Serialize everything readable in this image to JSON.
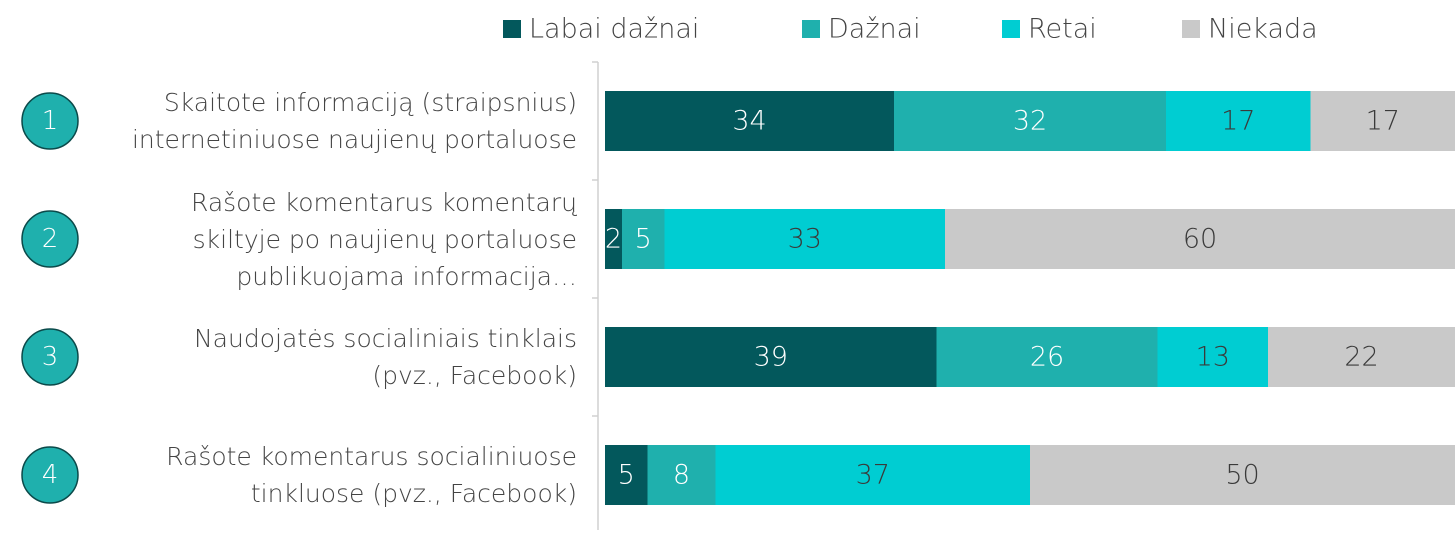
{
  "chart_data": {
    "type": "stacked-bar-horizontal",
    "row_numbers": [
      "1",
      "2",
      "3",
      "4"
    ],
    "categories": [
      "Skaitote informaciją (straipsnius) internetiniuose naujienų portaluose",
      "Rašote komentarus komentarų skiltyje po naujienų portaluose publikuojama informacija…",
      "Naudojatės socialiniais tinklais (pvz., Facebook)",
      "Rašote komentarus socialiniuose tinkluose (pvz., Facebook)"
    ],
    "series": [
      {
        "name": "Labai dažnai",
        "color": "#03585c",
        "label_color": "#ffffff",
        "values": [
          34,
          2,
          39,
          5
        ]
      },
      {
        "name": "Dažnai",
        "color": "#1fb0ad",
        "label_color": "#ffffff",
        "values": [
          32,
          5,
          26,
          8
        ]
      },
      {
        "name": "Retai",
        "color": "#00cdd2",
        "label_color": "#3a3a3a",
        "values": [
          17,
          33,
          13,
          37
        ]
      },
      {
        "name": "Niekada",
        "color": "#c9c9c9",
        "label_color": "#3a3a3a",
        "values": [
          17,
          60,
          22,
          50
        ]
      }
    ],
    "xlim": [
      0,
      100
    ],
    "legend": "top"
  }
}
